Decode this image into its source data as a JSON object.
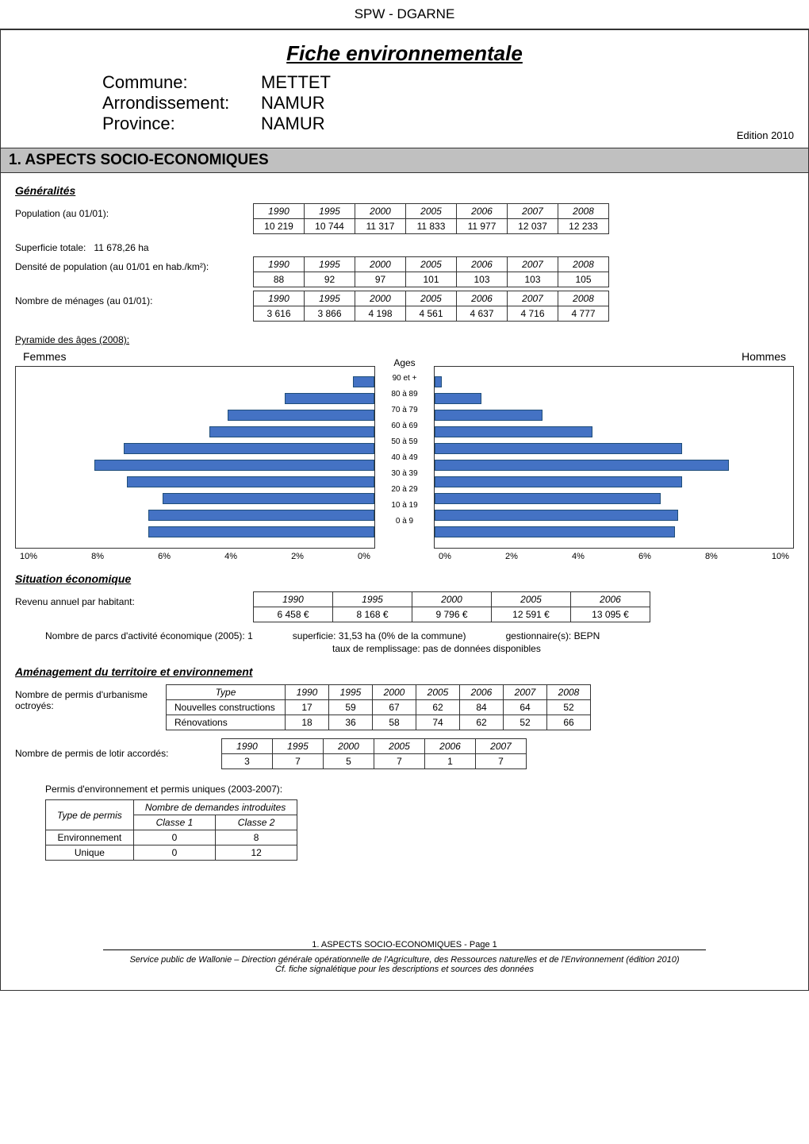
{
  "doc": {
    "header": "SPW - DGARNE",
    "title": "Fiche environnementale",
    "commune_label": "Commune:",
    "commune": "METTET",
    "arr_label": "Arrondissement:",
    "arr": "NAMUR",
    "prov_label": "Province:",
    "prov": "NAMUR",
    "edition": "Edition   2010"
  },
  "section1": {
    "heading": "1. ASPECTS SOCIO-ECONOMIQUES",
    "generalites": "Généralités",
    "population_label": "Population (au 01/01):",
    "population": {
      "years": [
        "1990",
        "1995",
        "2000",
        "2005",
        "2006",
        "2007",
        "2008"
      ],
      "values": [
        "10 219",
        "10 744",
        "11 317",
        "11 833",
        "11 977",
        "12 037",
        "12 233"
      ]
    },
    "superficie_label": "Superficie totale:",
    "superficie_value": "11 678,26 ha",
    "densite_label": "Densité de population (au 01/01 en hab./km²):",
    "densite": {
      "years": [
        "1990",
        "1995",
        "2000",
        "2005",
        "2006",
        "2007",
        "2008"
      ],
      "values": [
        "88",
        "92",
        "97",
        "101",
        "103",
        "103",
        "105"
      ]
    },
    "menages_label": "Nombre de ménages (au 01/01):",
    "menages": {
      "years": [
        "1990",
        "1995",
        "2000",
        "2005",
        "2006",
        "2007",
        "2008"
      ],
      "values": [
        "3 616",
        "3 866",
        "4 198",
        "4 561",
        "4 637",
        "4 716",
        "4 777"
      ]
    },
    "pyramide_label": "Pyramide des âges (2008):",
    "pyramid": {
      "max_pct": 10,
      "age_labels": [
        "90 et +",
        "80 à 89",
        "70 à 79",
        "60 à 69",
        "50 à 59",
        "40 à 49",
        "30 à 39",
        "20 à 29",
        "10 à 19",
        "0 à 9"
      ],
      "femmes_pct": [
        0.6,
        2.5,
        4.1,
        4.6,
        7.0,
        7.8,
        6.9,
        5.9,
        6.3,
        6.3
      ],
      "hommes_pct": [
        0.2,
        1.3,
        3.0,
        4.4,
        6.9,
        8.2,
        6.9,
        6.3,
        6.8,
        6.7
      ],
      "femmes_color": "#4472c4",
      "hommes_color": "#4472c4",
      "x_ticks_left": [
        "10%",
        "8%",
        "6%",
        "4%",
        "2%",
        "0%"
      ],
      "x_ticks_right": [
        "0%",
        "2%",
        "4%",
        "6%",
        "8%",
        "10%"
      ],
      "femmes_title": "Femmes",
      "hommes_title": "Hommes",
      "center_title": "Ages"
    },
    "situation_title": "Situation économique",
    "revenu_label": "Revenu annuel par habitant:",
    "revenu": {
      "years": [
        "1990",
        "1995",
        "2000",
        "2005",
        "2006"
      ],
      "values": [
        "6 458 €",
        "8 168 €",
        "9 796 €",
        "12 591 €",
        "13 095 €"
      ]
    },
    "parcs_line": {
      "a": "Nombre de parcs d'activité économique (2005):   1",
      "b": "superficie:   31,53 ha (0% de la commune)",
      "c": "gestionnaire(s):   BEPN",
      "d": "taux de remplissage:   pas de données disponibles"
    },
    "amenagement_title": "Aménagement du territoire et environnement",
    "permis_label": "Nombre de permis d'urbanisme octroyés:",
    "permis_urbanisme": {
      "type_header": "Type",
      "years": [
        "1990",
        "1995",
        "2000",
        "2005",
        "2006",
        "2007",
        "2008"
      ],
      "rows": [
        {
          "label": "Nouvelles constructions",
          "v": [
            "17",
            "59",
            "67",
            "62",
            "84",
            "64",
            "52"
          ]
        },
        {
          "label": "Rénovations",
          "v": [
            "18",
            "36",
            "58",
            "74",
            "62",
            "52",
            "66"
          ]
        }
      ]
    },
    "lotir_label": "Nombre de permis de lotir accordés:",
    "lotir": {
      "years": [
        "1990",
        "1995",
        "2000",
        "2005",
        "2006",
        "2007"
      ],
      "values": [
        "3",
        "7",
        "5",
        "7",
        "1",
        "7"
      ]
    },
    "env_permis_title": "Permis d'environnement et permis uniques (2003-2007):",
    "env_permis": {
      "col_type": "Type de permis",
      "col_dem": "Nombre de demandes  introduites",
      "col_c1": "Classe 1",
      "col_c2": "Classe 2",
      "rows": [
        {
          "label": "Environnement",
          "c1": "0",
          "c2": "8"
        },
        {
          "label": "Unique",
          "c1": "0",
          "c2": "12"
        }
      ]
    }
  },
  "footer": {
    "page": "1. ASPECTS SOCIO-ECONOMIQUES - Page 1",
    "line1": "Service public de Wallonie – Direction générale opérationnelle de l'Agriculture, des Ressources naturelles et de l'Environnement (édition 2010)",
    "line2": "Cf. fiche signalétique pour les descriptions et sources des données"
  }
}
